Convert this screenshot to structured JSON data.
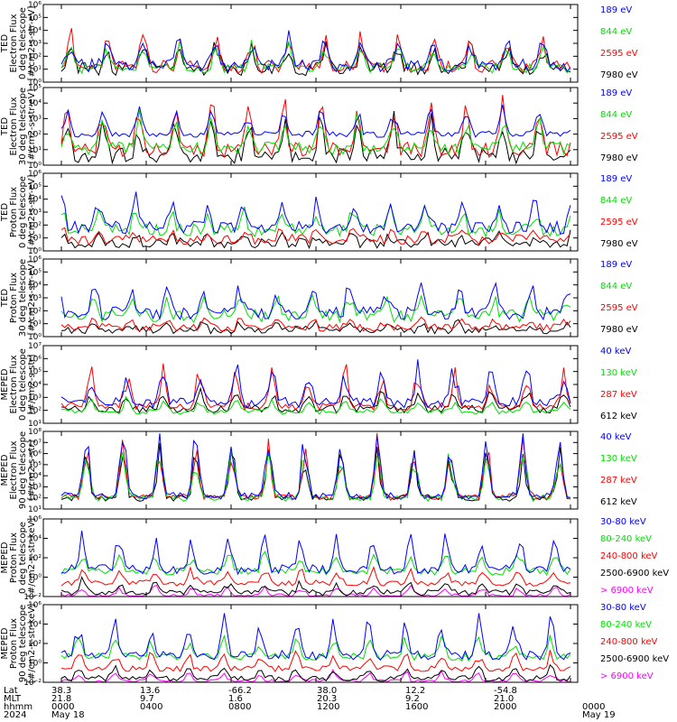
{
  "colors": {
    "blue": "#0000ff",
    "red": "#ff0000",
    "green": "#00e000",
    "black": "#000000",
    "magenta": "#ff00ff"
  },
  "chart_data": [
    {
      "type": "line",
      "ylabel": [
        "TED",
        "Electron Flux",
        "0 deg telescope",
        "[#/cm2-s-str-eV]"
      ],
      "ylim_exp": [
        0,
        6
      ],
      "scale": "log",
      "tick_labels": [
        "10⁰",
        "10¹",
        "10²",
        "10³",
        "10⁴",
        "10⁵",
        "10⁶"
      ],
      "series": [
        {
          "name": "7980 eV",
          "color": "black",
          "base": 1.0,
          "amp": 1.5,
          "noise": 0.5
        },
        {
          "name": "2595 eV",
          "color": "red",
          "base": 1.2,
          "amp": 1.9,
          "noise": 0.5
        },
        {
          "name": "844 eV",
          "color": "green",
          "base": 1.1,
          "amp": 1.4,
          "noise": 0.4
        },
        {
          "name": "189 eV",
          "color": "blue",
          "base": 1.3,
          "amp": 1.8,
          "noise": 0.5
        }
      ]
    },
    {
      "type": "line",
      "ylabel": [
        "TED",
        "Electron Flux",
        "30 deg telescope",
        "[#/cm2-s-str-eV]"
      ],
      "ylim_exp": [
        0,
        5
      ],
      "scale": "log",
      "tick_labels": [
        "10⁰",
        "10¹",
        "10²",
        "10³",
        "10⁴",
        "10⁵"
      ],
      "series": [
        {
          "name": "7980 eV",
          "color": "black",
          "base": 0.6,
          "amp": 2.0,
          "noise": 0.5
        },
        {
          "name": "2595 eV",
          "color": "red",
          "base": 1.0,
          "amp": 2.4,
          "noise": 0.5
        },
        {
          "name": "844 eV",
          "color": "green",
          "base": 1.1,
          "amp": 1.6,
          "noise": 0.4
        },
        {
          "name": "189 eV",
          "color": "blue",
          "base": 2.0,
          "amp": 1.3,
          "noise": 0.2
        }
      ]
    },
    {
      "type": "line",
      "ylabel": [
        "TED",
        "Proton Flux",
        "0 deg telescope",
        "[#/cm2-s-str-eV]"
      ],
      "ylim_exp": [
        0,
        6
      ],
      "scale": "log",
      "tick_labels": [
        "10⁰",
        "10¹",
        "10²",
        "10³",
        "10⁴",
        "10⁵",
        "10⁶"
      ],
      "series": [
        {
          "name": "7980 eV",
          "color": "black",
          "base": 0.6,
          "amp": 0.6,
          "noise": 0.4
        },
        {
          "name": "2595 eV",
          "color": "red",
          "base": 0.9,
          "amp": 0.6,
          "noise": 0.4
        },
        {
          "name": "844 eV",
          "color": "green",
          "base": 1.6,
          "amp": 1.3,
          "noise": 0.5
        },
        {
          "name": "189 eV",
          "color": "blue",
          "base": 1.8,
          "amp": 1.8,
          "noise": 0.5
        }
      ]
    },
    {
      "type": "line",
      "ylabel": [
        "TED",
        "Proton Flux",
        "30 deg telescope",
        "[#/cm2-s-str-eV]"
      ],
      "ylim_exp": [
        0,
        6
      ],
      "scale": "log",
      "tick_labels": [
        "10⁰",
        "10¹",
        "10²",
        "10³",
        "10⁴",
        "10⁵",
        "10⁶"
      ],
      "series": [
        {
          "name": "7980 eV",
          "color": "black",
          "base": 0.5,
          "amp": 0.5,
          "noise": 0.3
        },
        {
          "name": "2595 eV",
          "color": "red",
          "base": 0.7,
          "amp": 0.6,
          "noise": 0.3
        },
        {
          "name": "844 eV",
          "color": "green",
          "base": 1.6,
          "amp": 1.3,
          "noise": 0.5
        },
        {
          "name": "189 eV",
          "color": "blue",
          "base": 1.8,
          "amp": 1.9,
          "noise": 0.5
        }
      ]
    },
    {
      "type": "line",
      "ylabel": [
        "MEPED",
        "Electron Flux",
        "0 deg telescope",
        "[#/cm2-s-str]"
      ],
      "ylim_exp": [
        1,
        7
      ],
      "scale": "log",
      "tick_labels": [
        "10¹",
        "10²",
        "10³",
        "10⁴",
        "10⁵",
        "10⁶",
        "10⁷"
      ],
      "series": [
        {
          "name": "612 keV",
          "color": "black",
          "base": 2.1,
          "amp": 1.2,
          "noise": 0.3
        },
        {
          "name": "287 keV",
          "color": "red",
          "base": 2.3,
          "amp": 2.3,
          "noise": 0.3
        },
        {
          "name": "130 keV",
          "color": "green",
          "base": 1.9,
          "amp": 0.8,
          "noise": 0.2
        },
        {
          "name": "40 keV",
          "color": "blue",
          "base": 2.6,
          "amp": 2.3,
          "noise": 0.4
        }
      ]
    },
    {
      "type": "line",
      "ylabel": [
        "MEPED",
        "Electron Flux",
        "90 deg telescope",
        "[#/cm2-s-str]"
      ],
      "ylim_exp": [
        1,
        8
      ],
      "scale": "log",
      "tick_labels": [
        "10¹",
        "10²",
        "10³",
        "10⁴",
        "10⁵",
        "10⁶",
        "10⁷",
        "10⁸"
      ],
      "series": [
        {
          "name": "612 keV",
          "color": "black",
          "base": 2.0,
          "amp": 3.5,
          "noise": 0.3
        },
        {
          "name": "287 keV",
          "color": "red",
          "base": 2.1,
          "amp": 4.0,
          "noise": 0.3
        },
        {
          "name": "130 keV",
          "color": "green",
          "base": 2.0,
          "amp": 3.8,
          "noise": 0.3
        },
        {
          "name": "40 keV",
          "color": "blue",
          "base": 2.2,
          "amp": 4.3,
          "noise": 0.3
        }
      ]
    },
    {
      "type": "line",
      "ylabel": [
        "MEPED",
        "Proton Flux",
        "0 deg telescope",
        "[#/cm2-s-str-keV]"
      ],
      "ylim_exp": [
        -2,
        6
      ],
      "scale": "log",
      "tick_labels": [
        "10⁻²",
        "10⁰",
        "10²",
        "10⁴",
        "10⁶"
      ],
      "tick_exps": [
        -2,
        0,
        2,
        4,
        6
      ],
      "series": [
        {
          "name": "> 6900 keV",
          "color": "magenta",
          "base": -1.9,
          "amp": 0.8,
          "noise": 0.2
        },
        {
          "name": "2500-6900 keV",
          "color": "black",
          "base": -1.6,
          "amp": 1.0,
          "noise": 0.3
        },
        {
          "name": "240-800 keV",
          "color": "red",
          "base": -0.6,
          "amp": 1.2,
          "noise": 0.3
        },
        {
          "name": "80-240 keV",
          "color": "green",
          "base": 0.6,
          "amp": 1.6,
          "noise": 0.4
        },
        {
          "name": "30-80 keV",
          "color": "blue",
          "base": 0.8,
          "amp": 3.0,
          "noise": 0.5
        }
      ]
    },
    {
      "type": "line",
      "ylabel": [
        "MEPED",
        "Proton Flux",
        "90 deg telescope",
        "[#/cm2-s-str-keV]"
      ],
      "ylim_exp": [
        -2,
        6
      ],
      "scale": "log",
      "tick_labels": [
        "10⁻²",
        "10⁰",
        "10²",
        "10⁴",
        "10⁶"
      ],
      "tick_exps": [
        -2,
        0,
        2,
        4,
        6
      ],
      "series": [
        {
          "name": "> 6900 keV",
          "color": "magenta",
          "base": -1.9,
          "amp": 0.8,
          "noise": 0.2
        },
        {
          "name": "2500-6900 keV",
          "color": "black",
          "base": -1.6,
          "amp": 1.0,
          "noise": 0.3
        },
        {
          "name": "240-800 keV",
          "color": "red",
          "base": -0.6,
          "amp": 1.4,
          "noise": 0.3
        },
        {
          "name": "80-240 keV",
          "color": "green",
          "base": 0.6,
          "amp": 1.6,
          "noise": 0.4
        },
        {
          "name": "30-80 keV",
          "color": "blue",
          "base": 0.8,
          "amp": 3.0,
          "noise": 0.5
        }
      ]
    }
  ],
  "footer": {
    "row_labels": [
      "Lat",
      "MLT",
      "hhmm",
      "2024"
    ],
    "columns": [
      {
        "lat": "38.3",
        "mlt": "21.8",
        "hhmm": "0000",
        "date": "May 18"
      },
      {
        "lat": "13.6",
        "mlt": "9.7",
        "hhmm": "0400",
        "date": ""
      },
      {
        "lat": "-66.2",
        "mlt": "1.6",
        "hhmm": "0800",
        "date": ""
      },
      {
        "lat": "38.0",
        "mlt": "20.3",
        "hhmm": "1200",
        "date": ""
      },
      {
        "lat": "12.2",
        "mlt": "9.2",
        "hhmm": "1600",
        "date": ""
      },
      {
        "lat": "-54.8",
        "mlt": "21.0",
        "hhmm": "2000",
        "date": ""
      },
      {
        "lat": "",
        "mlt": "",
        "hhmm": "0000",
        "date": "May 19"
      }
    ]
  }
}
